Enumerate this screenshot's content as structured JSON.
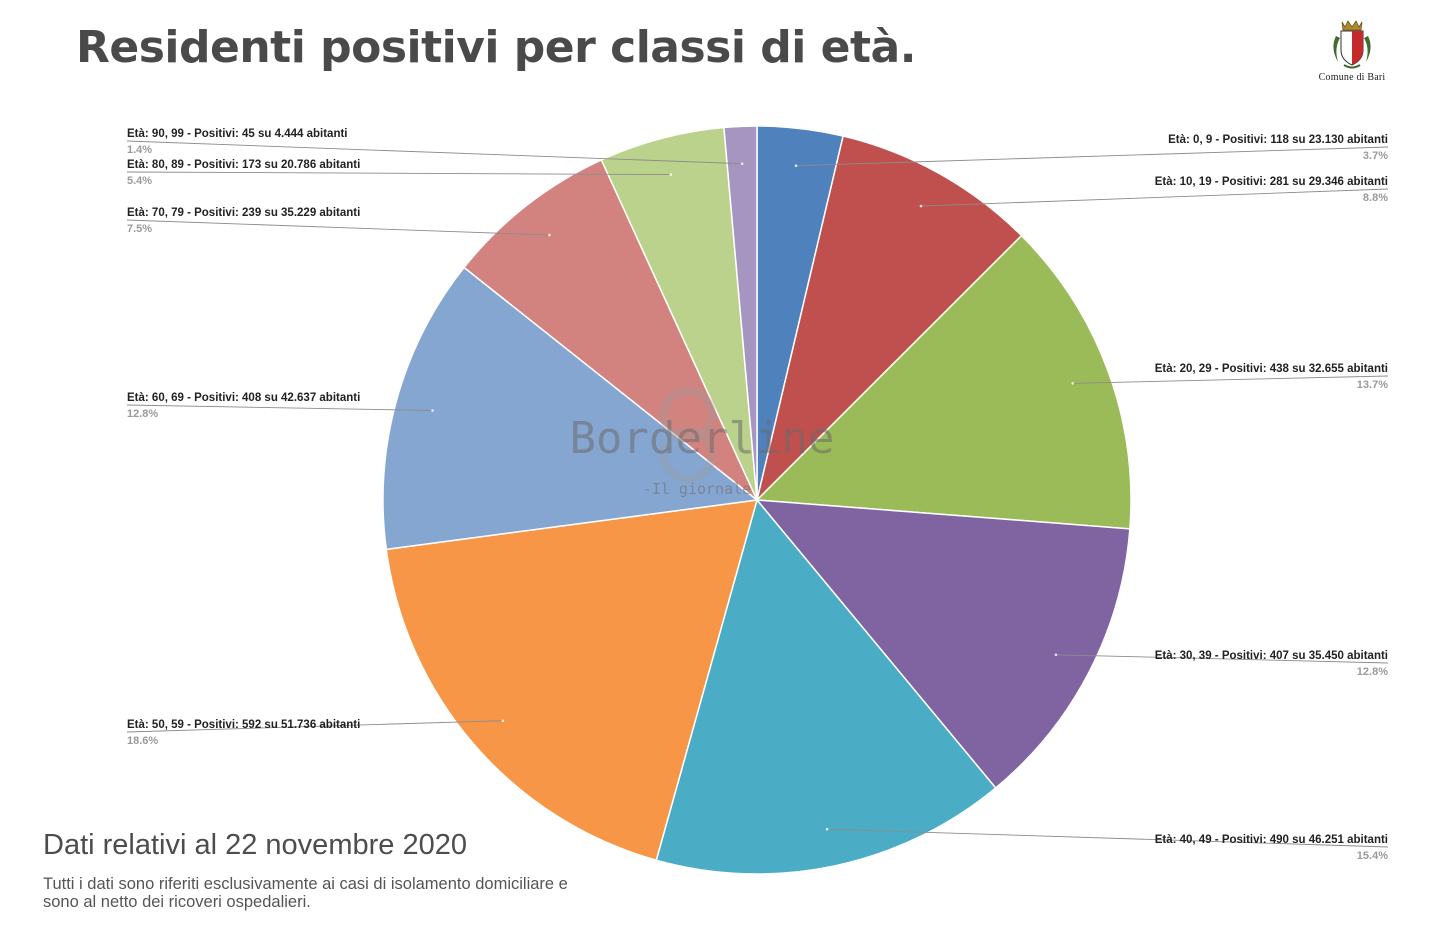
{
  "header": {
    "title": "Residenti positivi per classi di età.",
    "logo_text": "Comune di Bari"
  },
  "watermark": {
    "name": "Borderline",
    "tagline": "-Il giornale"
  },
  "footer": {
    "title": "Dati relativi al 22 novembre 2020",
    "note": "Tutti i dati sono riferiti esclusivamente ai casi di isolamento domiciliare e sono al netto dei ricoveri ospedalieri."
  },
  "chart_data": {
    "type": "pie",
    "slices": [
      {
        "label": "Età: 0, 9 - Positivi: 118 su 23.130 abitanti",
        "value": 118,
        "percent": "3.7%",
        "color": "#4f81bd"
      },
      {
        "label": "Età: 10, 19 - Positivi: 281 su 29.346 abitanti",
        "value": 281,
        "percent": "8.8%",
        "color": "#c0504d"
      },
      {
        "label": "Età: 20, 29 - Positivi: 438 su 32.655 abitanti",
        "value": 438,
        "percent": "13.7%",
        "color": "#9bbb59"
      },
      {
        "label": "Età: 30, 39 - Positivi: 407 su 35.450 abitanti",
        "value": 407,
        "percent": "12.8%",
        "color": "#8064a2"
      },
      {
        "label": "Età: 40, 49 - Positivi: 490 su 46.251 abitanti",
        "value": 490,
        "percent": "15.4%",
        "color": "#4bacc6"
      },
      {
        "label": "Età: 50, 59 - Positivi: 592 su 51.736 abitanti",
        "value": 592,
        "percent": "18.6%",
        "color": "#f79646"
      },
      {
        "label": "Età: 60, 69 - Positivi: 408 su 42.637 abitanti",
        "value": 408,
        "percent": "12.8%",
        "color": "#86a6d2"
      },
      {
        "label": "Età: 70, 79 - Positivi: 239 su 35.229 abitanti",
        "value": 239,
        "percent": "7.5%",
        "color": "#d3837f"
      },
      {
        "label": "Età: 80, 89 - Positivi: 173 su 20.786 abitanti",
        "value": 173,
        "percent": "5.4%",
        "color": "#bbd28c"
      },
      {
        "label": "Età: 90, 99 - Positivi: 45 su 4.444 abitanti",
        "value": 45,
        "percent": "1.4%",
        "color": "#a694c1"
      }
    ]
  }
}
